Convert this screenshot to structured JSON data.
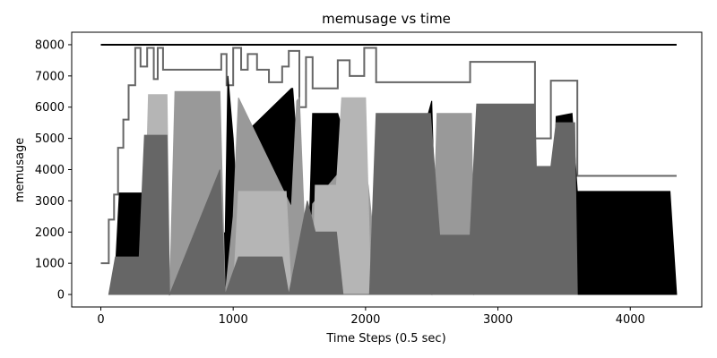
{
  "chart_data": {
    "type": "area",
    "title": "memusage vs time",
    "xlabel": "Time Steps (0.5 sec)",
    "ylabel": "memusage",
    "xlim": [
      -220,
      4540
    ],
    "ylim": [
      -400,
      8400
    ],
    "xticks": [
      0,
      1000,
      2000,
      3000,
      4000
    ],
    "yticks": [
      0,
      1000,
      2000,
      3000,
      4000,
      5000,
      6000,
      7000,
      8000
    ],
    "grid": false,
    "legend": "none",
    "colors": [
      "#000000",
      "#666666",
      "#999999",
      "#b5b5b5"
    ],
    "series": [
      {
        "color": "#000000",
        "kind": "line",
        "x": [
          0,
          4350
        ],
        "y": [
          8000,
          8000
        ]
      },
      {
        "color": "#666666",
        "kind": "step",
        "x": [
          0,
          60,
          100,
          130,
          170,
          210,
          260,
          300,
          350,
          400,
          430,
          470,
          520,
          910,
          950,
          1000,
          1060,
          1110,
          1180,
          1270,
          1370,
          1420,
          1500,
          1550,
          1600,
          1790,
          1880,
          1990,
          2080,
          2500,
          2600,
          2790,
          2800,
          3280,
          3400,
          3560,
          3600,
          4350
        ],
        "y": [
          1000,
          2400,
          3200,
          4700,
          5600,
          6700,
          7900,
          7300,
          7900,
          6900,
          7900,
          7200,
          7200,
          7700,
          6700,
          7900,
          7200,
          7700,
          7200,
          6800,
          7300,
          7800,
          6000,
          7600,
          6600,
          7500,
          7000,
          7900,
          6800,
          6800,
          6800,
          7450,
          7450,
          5000,
          6850,
          6850,
          3800,
          3800
        ]
      },
      {
        "color": "#000000",
        "kind": "area",
        "x": [
          100,
          140,
          500,
          520,
          940,
          960,
          1000,
          1020,
          1100,
          1440,
          1450,
          1560,
          1600,
          1790,
          2000,
          2040,
          2100,
          2500,
          2540,
          3400,
          3440,
          3560,
          3600,
          4300,
          4350
        ],
        "y": [
          0,
          3250,
          3250,
          0,
          2000,
          7000,
          5000,
          3500,
          5200,
          6600,
          6600,
          0,
          5800,
          5800,
          2800,
          1200,
          0,
          6200,
          0,
          0,
          5700,
          5800,
          3300,
          3300,
          0
        ]
      },
      {
        "color": "#999999",
        "kind": "area",
        "x": [
          520,
          560,
          900,
          940,
          1000,
          1040,
          1440,
          1480,
          1500,
          1560,
          1600,
          1840,
          1880,
          2020,
          2060,
          2500,
          2540,
          2800,
          2820,
          3280,
          3400
        ],
        "y": [
          0,
          6500,
          6500,
          0,
          2500,
          6300,
          2800,
          6200,
          6300,
          0,
          2900,
          4100,
          6300,
          3500,
          1900,
          0,
          5800,
          5800,
          0,
          2000,
          0
        ]
      },
      {
        "color": "#b5b5b5",
        "kind": "area",
        "x": [
          320,
          360,
          500,
          520,
          900,
          940,
          1000,
          1040,
          1400,
          1440,
          1600,
          1620,
          1780,
          1820,
          2000,
          2040,
          2480,
          2540,
          2780,
          2820,
          3000,
          3280,
          3300,
          3400
        ],
        "y": [
          0,
          6400,
          6400,
          0,
          3900,
          0,
          0,
          3300,
          3300,
          0,
          0,
          3500,
          3500,
          6300,
          6300,
          0,
          0,
          1900,
          1900,
          0,
          3800,
          3800,
          1800,
          0
        ]
      },
      {
        "color": "#666666",
        "kind": "area",
        "x": [
          60,
          110,
          290,
          330,
          500,
          520,
          900,
          940,
          1040,
          1100,
          1370,
          1420,
          1560,
          1620,
          1780,
          1830,
          2030,
          2080,
          2490,
          2560,
          2790,
          2840,
          3280,
          3290,
          3400,
          3440,
          3580,
          3600
        ],
        "y": [
          0,
          1200,
          1200,
          5100,
          5100,
          0,
          4000,
          0,
          1200,
          1200,
          1200,
          0,
          3000,
          2000,
          2000,
          0,
          0,
          5800,
          5800,
          1900,
          1900,
          6100,
          6100,
          4100,
          4100,
          5500,
          5500,
          0
        ]
      }
    ]
  }
}
